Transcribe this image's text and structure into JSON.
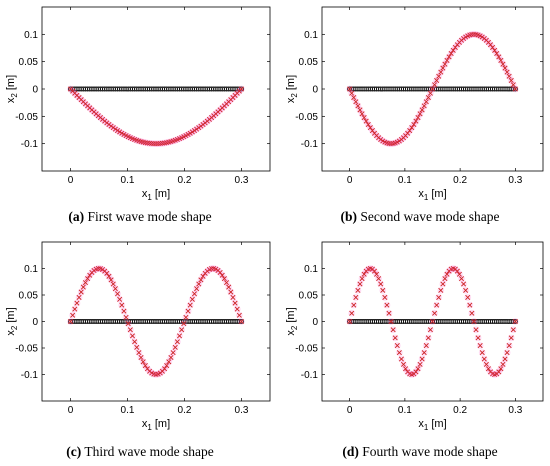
{
  "chart_data": [
    {
      "panel": "a",
      "type": "scatter",
      "mode": 1,
      "xlabel": "x",
      "xlabel_sub": "1",
      "xlabel_unit": " [m]",
      "ylabel": "x",
      "ylabel_sub": "2",
      "ylabel_unit": " [m]",
      "xlim": [
        -0.05,
        0.35
      ],
      "ylim": [
        -0.15,
        0.15
      ],
      "xticks": [
        "0",
        "0.1",
        "0.2",
        "0.3"
      ],
      "yticks": [
        "-0.1",
        "-0.05",
        "0",
        "0.05",
        "0.1"
      ],
      "amplitude": 0.1,
      "length": 0.3,
      "series": [
        {
          "role": "deformed",
          "formula": "-0.1*sin(pi*x/0.3)",
          "x_range": [
            0,
            0.3
          ],
          "color": "#cc2222",
          "marker": "x"
        },
        {
          "role": "undeformed",
          "y": 0,
          "x_range": [
            0,
            0.3
          ],
          "color": "#111111",
          "marker": "o"
        }
      ],
      "caption_label": "(a)",
      "caption_text": " First wave mode shape"
    },
    {
      "panel": "b",
      "type": "scatter",
      "mode": 2,
      "xlabel": "x",
      "xlabel_sub": "1",
      "xlabel_unit": " [m]",
      "ylabel": "x",
      "ylabel_sub": "2",
      "ylabel_unit": " [m]",
      "xlim": [
        -0.05,
        0.35
      ],
      "ylim": [
        -0.15,
        0.15
      ],
      "xticks": [
        "0",
        "0.1",
        "0.2",
        "0.3"
      ],
      "yticks": [
        "-0.1",
        "-0.05",
        "0",
        "0.05",
        "0.1"
      ],
      "amplitude": 0.1,
      "length": 0.3,
      "series": [
        {
          "role": "deformed",
          "formula": "-0.1*sin(2*pi*x/0.3)",
          "x_range": [
            0,
            0.3
          ],
          "color": "#cc2222",
          "marker": "x"
        },
        {
          "role": "undeformed",
          "y": 0,
          "x_range": [
            0,
            0.3
          ],
          "color": "#111111",
          "marker": "o"
        }
      ],
      "caption_label": "(b)",
      "caption_text": " Second wave mode shape"
    },
    {
      "panel": "c",
      "type": "scatter",
      "mode": 3,
      "xlabel": "x",
      "xlabel_sub": "1",
      "xlabel_unit": " [m]",
      "ylabel": "x",
      "ylabel_sub": "2",
      "ylabel_unit": " [m]",
      "xlim": [
        -0.05,
        0.35
      ],
      "ylim": [
        -0.15,
        0.15
      ],
      "xticks": [
        "0",
        "0.1",
        "0.2",
        "0.3"
      ],
      "yticks": [
        "-0.1",
        "-0.05",
        "0",
        "0.05",
        "0.1"
      ],
      "amplitude": 0.1,
      "length": 0.3,
      "series": [
        {
          "role": "deformed",
          "formula": "0.1*sin(3*pi*x/0.3)",
          "x_range": [
            0,
            0.3
          ],
          "color": "#cc2222",
          "marker": "x"
        },
        {
          "role": "undeformed",
          "y": 0,
          "x_range": [
            0,
            0.3
          ],
          "color": "#111111",
          "marker": "o"
        }
      ],
      "caption_label": "(c)",
      "caption_text": " Third wave mode shape"
    },
    {
      "panel": "d",
      "type": "scatter",
      "mode": 4,
      "xlabel": "x",
      "xlabel_sub": "1",
      "xlabel_unit": " [m]",
      "ylabel": "x",
      "ylabel_sub": "2",
      "ylabel_unit": " [m]",
      "xlim": [
        -0.05,
        0.35
      ],
      "ylim": [
        -0.15,
        0.15
      ],
      "xticks": [
        "0",
        "0.1",
        "0.2",
        "0.3"
      ],
      "yticks": [
        "-0.1",
        "-0.05",
        "0",
        "0.05",
        "0.1"
      ],
      "amplitude": 0.1,
      "length": 0.3,
      "series": [
        {
          "role": "deformed",
          "formula": "0.1*sin(4*pi*x/0.3)",
          "x_range": [
            0,
            0.3
          ],
          "color": "#cc2222",
          "marker": "x"
        },
        {
          "role": "undeformed",
          "y": 0,
          "x_range": [
            0,
            0.3
          ],
          "color": "#111111",
          "marker": "o"
        }
      ],
      "caption_label": "(d)",
      "caption_text": " Fourth wave mode shape"
    }
  ]
}
